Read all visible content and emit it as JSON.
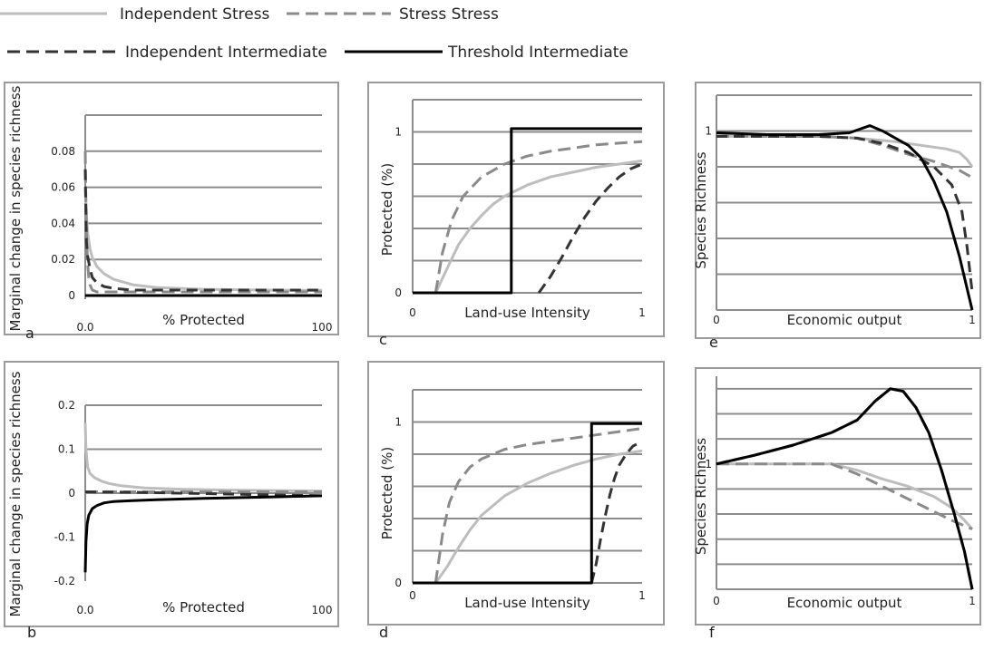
{
  "legend": [
    {
      "label": "Independent Stress",
      "color": "#bdbdbd",
      "dash": "solid"
    },
    {
      "label": "Stress Stress",
      "color": "#8a8a8a",
      "dash": "dashed"
    },
    {
      "label": "Independent Intermediate",
      "color": "#333333",
      "dash": "dashed"
    },
    {
      "label": "Threshold Intermediate",
      "color": "#000000",
      "dash": "solid"
    }
  ],
  "chart_data": [
    {
      "panel": "a",
      "type": "line",
      "xlabel": "% Protected",
      "ylabel": "Marginal change in species richness",
      "xlim": [
        0,
        100
      ],
      "ylim": [
        -0.002,
        0.1
      ],
      "x_tick_labels": [
        "0.0",
        "100"
      ],
      "y_ticks": [
        0,
        0.02,
        0.04,
        0.06,
        0.08
      ],
      "y_tick_labels": [
        "0",
        "0.02",
        "0.04",
        "0.06",
        "0.08"
      ],
      "gridlines_y": [
        0,
        0.02,
        0.04,
        0.06,
        0.08,
        0.1
      ],
      "series": [
        {
          "x": [
            0,
            0.5,
            1,
            2,
            3,
            5,
            8,
            12,
            20,
            30,
            50,
            75,
            100
          ],
          "y": [
            0.06,
            0.045,
            0.035,
            0.026,
            0.021,
            0.016,
            0.012,
            0.009,
            0.006,
            0.0045,
            0.0035,
            0.003,
            0.0028
          ]
        },
        {
          "x": [
            0,
            0.2,
            0.5,
            1,
            1.5,
            2,
            3,
            5,
            10,
            20,
            100
          ],
          "y": [
            0.08,
            0.06,
            0.035,
            0.018,
            0.01,
            0.006,
            0.003,
            0.002,
            0.002,
            0.002,
            0.002
          ]
        },
        {
          "x": [
            0,
            0.5,
            1,
            2,
            3,
            5,
            8,
            12,
            20,
            50,
            100
          ],
          "y": [
            0.07,
            0.03,
            0.022,
            0.015,
            0.01,
            0.007,
            0.005,
            0.004,
            0.003,
            0.003,
            0.003
          ]
        },
        {
          "x": [
            0,
            100
          ],
          "y": [
            0,
            0
          ]
        }
      ]
    },
    {
      "panel": "c",
      "type": "line",
      "xlabel": "Land-use Intensity",
      "ylabel": "Protected (%)",
      "xlim": [
        0,
        1
      ],
      "ylim": [
        0,
        1.2
      ],
      "x_tick_labels": [
        "0",
        "1"
      ],
      "y_ticks": [
        0,
        1
      ],
      "y_tick_labels": [
        "0",
        "1"
      ],
      "gridlines_y": [
        0,
        0.2,
        0.4,
        0.6,
        0.8,
        1.0,
        1.2
      ],
      "series": [
        {
          "x": [
            0.1,
            0.15,
            0.2,
            0.25,
            0.3,
            0.35,
            0.4,
            0.5,
            0.6,
            0.7,
            0.8,
            0.9,
            1.0
          ],
          "y": [
            0,
            0.15,
            0.3,
            0.4,
            0.48,
            0.55,
            0.6,
            0.67,
            0.72,
            0.75,
            0.78,
            0.8,
            0.82
          ]
        },
        {
          "x": [
            0.1,
            0.13,
            0.17,
            0.22,
            0.3,
            0.4,
            0.5,
            0.6,
            0.7,
            0.8,
            0.9,
            1.0
          ],
          "y": [
            0,
            0.25,
            0.45,
            0.6,
            0.72,
            0.8,
            0.85,
            0.88,
            0.9,
            0.92,
            0.93,
            0.94
          ]
        },
        {
          "x": [
            0.55,
            0.6,
            0.65,
            0.7,
            0.75,
            0.8,
            0.85,
            0.9,
            0.95,
            1.0
          ],
          "y": [
            0,
            0.1,
            0.22,
            0.35,
            0.47,
            0.57,
            0.65,
            0.72,
            0.77,
            0.8
          ]
        },
        {
          "x": [
            0,
            0.43,
            0.43,
            1.0
          ],
          "y": [
            0,
            0,
            1.02,
            1.02
          ]
        }
      ]
    },
    {
      "panel": "e",
      "type": "line",
      "xlabel": "Economic output",
      "ylabel": "Species Richness",
      "xlim": [
        0,
        1
      ],
      "ylim": [
        0,
        1.2
      ],
      "x_tick_labels": [
        "0",
        "1"
      ],
      "y_ticks": [
        1
      ],
      "y_tick_labels": [
        "1"
      ],
      "gridlines_y": [
        0,
        0.2,
        0.4,
        0.6,
        0.8,
        1.0,
        1.2
      ],
      "series": [
        {
          "x": [
            0,
            0.2,
            0.4,
            0.55,
            0.7,
            0.8,
            0.9,
            0.95,
            0.98,
            1.0
          ],
          "y": [
            0.97,
            0.97,
            0.97,
            0.96,
            0.94,
            0.92,
            0.9,
            0.88,
            0.84,
            0.8
          ]
        },
        {
          "x": [
            0,
            0.2,
            0.4,
            0.55,
            0.65,
            0.75,
            0.85,
            0.95,
            1.0
          ],
          "y": [
            0.97,
            0.97,
            0.97,
            0.96,
            0.92,
            0.87,
            0.83,
            0.78,
            0.74
          ]
        },
        {
          "x": [
            0,
            0.2,
            0.4,
            0.55,
            0.65,
            0.75,
            0.85,
            0.92,
            0.96,
            0.98,
            1.0
          ],
          "y": [
            0.97,
            0.97,
            0.97,
            0.96,
            0.93,
            0.88,
            0.8,
            0.7,
            0.55,
            0.35,
            0.1
          ]
        },
        {
          "x": [
            0,
            0.2,
            0.4,
            0.52,
            0.56,
            0.6,
            0.65,
            0.7,
            0.75,
            0.8,
            0.85,
            0.9,
            0.95,
            1.0
          ],
          "y": [
            0.99,
            0.98,
            0.98,
            0.99,
            1.01,
            1.03,
            1.0,
            0.96,
            0.92,
            0.85,
            0.72,
            0.55,
            0.3,
            0
          ]
        }
      ]
    },
    {
      "panel": "b",
      "type": "line",
      "xlabel": "% Protected",
      "ylabel": "Marginal change in species richness",
      "xlim": [
        0,
        100
      ],
      "ylim": [
        -0.2,
        0.2
      ],
      "x_tick_labels": [
        "0.0",
        "100"
      ],
      "y_ticks": [
        -0.2,
        -0.1,
        0,
        0.1,
        0.2
      ],
      "y_tick_labels": [
        "-0.2",
        "-0.1",
        "0",
        "0.1",
        "0.2"
      ],
      "gridlines_y": [
        0,
        0.1,
        0.2
      ],
      "series": [
        {
          "x": [
            0,
            0.3,
            1,
            2,
            4,
            7,
            10,
            15,
            25,
            40,
            60,
            80,
            100
          ],
          "y": [
            0.16,
            0.1,
            0.06,
            0.045,
            0.035,
            0.027,
            0.022,
            0.017,
            0.012,
            0.009,
            0.007,
            0.006,
            0.005
          ]
        },
        {
          "x": [
            0,
            100
          ],
          "y": [
            0.003,
            0.003
          ]
        },
        {
          "x": [
            0,
            20,
            40,
            60,
            80,
            100
          ],
          "y": [
            0.003,
            0.002,
            0.0,
            -0.002,
            -0.004,
            -0.006
          ]
        },
        {
          "x": [
            0,
            0.3,
            0.8,
            1.5,
            3,
            5,
            8,
            12,
            20,
            30,
            50,
            75,
            100
          ],
          "y": [
            -0.18,
            -0.11,
            -0.07,
            -0.05,
            -0.035,
            -0.028,
            -0.022,
            -0.019,
            -0.017,
            -0.015,
            -0.012,
            -0.009,
            -0.006
          ]
        }
      ]
    },
    {
      "panel": "d",
      "type": "line",
      "xlabel": "Land-use Intensity",
      "ylabel": "Protected (%)",
      "xlim": [
        0,
        1
      ],
      "ylim": [
        0,
        1.2
      ],
      "x_tick_labels": [
        "0",
        "1"
      ],
      "y_ticks": [
        0,
        1
      ],
      "y_tick_labels": [
        "0",
        "1"
      ],
      "gridlines_y": [
        0,
        0.2,
        0.4,
        0.6,
        0.8,
        1.0,
        1.2
      ],
      "series": [
        {
          "x": [
            0.1,
            0.15,
            0.2,
            0.25,
            0.3,
            0.4,
            0.5,
            0.6,
            0.7,
            0.8,
            0.9,
            1.0
          ],
          "y": [
            0,
            0.1,
            0.22,
            0.33,
            0.42,
            0.54,
            0.62,
            0.68,
            0.73,
            0.77,
            0.8,
            0.82
          ]
        },
        {
          "x": [
            0.1,
            0.13,
            0.16,
            0.2,
            0.25,
            0.3,
            0.4,
            0.5,
            0.6,
            0.7,
            0.8,
            0.9,
            1.0
          ],
          "y": [
            0,
            0.3,
            0.5,
            0.63,
            0.72,
            0.77,
            0.83,
            0.86,
            0.88,
            0.9,
            0.92,
            0.94,
            0.96
          ]
        },
        {
          "x": [
            0.78,
            0.8,
            0.82,
            0.84,
            0.86,
            0.88,
            0.9,
            0.93,
            0.96,
            1.0
          ],
          "y": [
            0,
            0.12,
            0.28,
            0.42,
            0.55,
            0.65,
            0.73,
            0.8,
            0.85,
            0.88
          ]
        },
        {
          "x": [
            0,
            0.78,
            0.78,
            1.0
          ],
          "y": [
            0,
            0,
            0.99,
            0.99
          ]
        }
      ]
    },
    {
      "panel": "f",
      "type": "line",
      "xlabel": "Economic output",
      "ylabel": "Species Richness",
      "xlim": [
        0,
        1
      ],
      "ylim": [
        0,
        1.7
      ],
      "x_tick_labels": [
        "0",
        "1"
      ],
      "y_ticks": [
        1
      ],
      "y_tick_labels": [
        "1"
      ],
      "gridlines_y": [
        0,
        0.2,
        0.4,
        0.6,
        0.8,
        1.0,
        1.2,
        1.4,
        1.6
      ],
      "series": [
        {
          "x": [
            0,
            0.2,
            0.45,
            0.55,
            0.65,
            0.75,
            0.85,
            0.92,
            0.97,
            1.0
          ],
          "y": [
            1.0,
            1.0,
            1.0,
            0.95,
            0.88,
            0.82,
            0.74,
            0.65,
            0.55,
            0.48
          ]
        },
        {
          "x": [
            0,
            0.2,
            0.45,
            0.55,
            0.65,
            0.75,
            0.85,
            0.92,
            1.0
          ],
          "y": [
            1.0,
            1.0,
            1.0,
            0.92,
            0.82,
            0.72,
            0.62,
            0.55,
            0.48
          ]
        },
        {
          "x": [
            0,
            0.15,
            0.3,
            0.45,
            0.55,
            0.62,
            0.68,
            0.73,
            0.78,
            0.83,
            0.88,
            0.93,
            0.97,
            1.0
          ],
          "y": [
            1.0,
            1.07,
            1.15,
            1.25,
            1.35,
            1.5,
            1.6,
            1.58,
            1.45,
            1.25,
            0.95,
            0.6,
            0.3,
            0
          ]
        },
        {
          "x": [
            0,
            0.15,
            0.3,
            0.45,
            0.55,
            0.62,
            0.68,
            0.73,
            0.78,
            0.83,
            0.88,
            0.93,
            0.97,
            1.0
          ],
          "y": [
            1.0,
            1.07,
            1.15,
            1.25,
            1.35,
            1.5,
            1.6,
            1.58,
            1.45,
            1.25,
            0.95,
            0.6,
            0.3,
            0
          ]
        }
      ]
    }
  ]
}
